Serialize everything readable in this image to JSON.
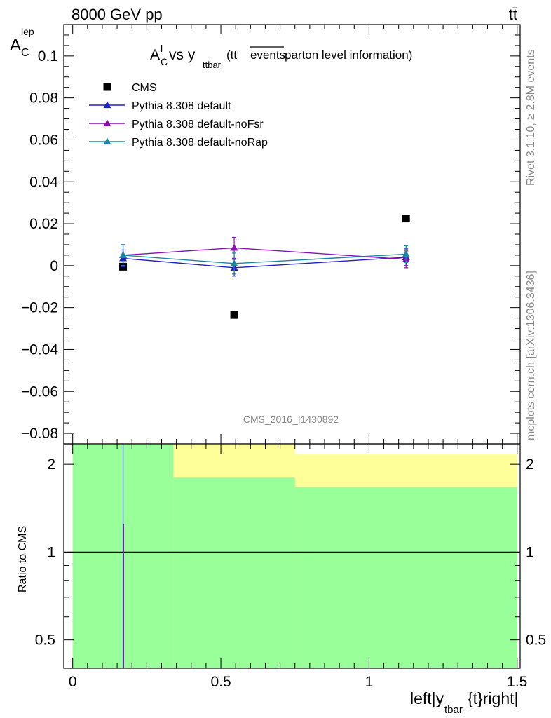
{
  "header": {
    "energy_label": "8000 GeV pp",
    "process_label": "tt̄"
  },
  "side_labels": {
    "rivet": "Rivet 3.1.10, ≥ 2.8M events",
    "mcplots": "mcplots.cern.ch [arXiv:1306.3436]"
  },
  "chart_data": [
    {
      "type": "scatter",
      "title_parts": {
        "a": "A",
        "a_sup": "l",
        "a_sub": "C",
        "vs": " vs y",
        "y_sub": "ttbar",
        "paren_open": " (tt",
        "overline": "events,",
        "rest": " parton level information)"
      },
      "ylabel_parts": {
        "main": "A",
        "sub": "C",
        "sup": "lep"
      },
      "xlim": [
        -0.03,
        1.51
      ],
      "ylim": [
        -0.085,
        0.115
      ],
      "yticks": [
        {
          "v": 0.1,
          "label": "0.1"
        },
        {
          "v": 0.08,
          "label": "0.08"
        },
        {
          "v": 0.06,
          "label": "0.06"
        },
        {
          "v": 0.04,
          "label": "0.04"
        },
        {
          "v": 0.02,
          "label": "0.02"
        },
        {
          "v": 0,
          "label": "0"
        },
        {
          "v": -0.02,
          "label": "−0.02"
        },
        {
          "v": -0.04,
          "label": "−0.04"
        },
        {
          "v": -0.06,
          "label": "−0.06"
        },
        {
          "v": -0.08,
          "label": "−0.08"
        }
      ],
      "watermark": "CMS_2016_I1430892",
      "legend_position": "top-left",
      "series": [
        {
          "name": "CMS",
          "marker": "square",
          "color": "#000000",
          "x": [
            0.17,
            0.545,
            1.125
          ],
          "y": [
            -0.0005,
            -0.0235,
            0.0225
          ],
          "err": [
            0.0,
            0.0,
            0.0
          ]
        },
        {
          "name": "Pythia 8.308 default",
          "marker": "triangle",
          "color": "#1f1fc8",
          "x": [
            0.17,
            0.545,
            1.125
          ],
          "y": [
            0.0035,
            -0.001,
            0.004
          ],
          "err": [
            0.004,
            0.004,
            0.004
          ]
        },
        {
          "name": "Pythia 8.308 default-noFsr",
          "marker": "triangle",
          "color": "#8a0fb4",
          "x": [
            0.17,
            0.545,
            1.125
          ],
          "y": [
            0.005,
            0.0085,
            0.003
          ],
          "err": [
            0.005,
            0.005,
            0.004
          ]
        },
        {
          "name": "Pythia 8.308 default-noRap",
          "marker": "triangle",
          "color": "#1a85a5",
          "x": [
            0.17,
            0.545,
            1.125
          ],
          "y": [
            0.005,
            0.001,
            0.0055
          ],
          "err": [
            0.005,
            0.005,
            0.004
          ]
        }
      ]
    },
    {
      "type": "area",
      "ylabel": "Ratio to CMS",
      "xlabel_parts": {
        "main": "left|y",
        "sub": "tbar",
        "rest": "{t}right|"
      },
      "log_y": true,
      "xlim": [
        -0.03,
        1.51
      ],
      "ylim": [
        0.4,
        2.35
      ],
      "xticks": [
        {
          "v": 0,
          "label": "0"
        },
        {
          "v": 0.5,
          "label": "0.5"
        },
        {
          "v": 1,
          "label": "1"
        },
        {
          "v": 1.5,
          "label": "1.5"
        }
      ],
      "yticks": [
        {
          "v": 0.5,
          "label": "0.5"
        },
        {
          "v": 1,
          "label": "1"
        },
        {
          "v": 2,
          "label": "2"
        }
      ],
      "reference_line": 1,
      "bands": [
        {
          "name": "yellow",
          "color": "#ffff99",
          "bins": [
            {
              "x0": 0.0,
              "x1": 0.34,
              "lo": 0.4,
              "hi": 2.35
            },
            {
              "x0": 0.34,
              "x1": 0.75,
              "lo": 1.8,
              "hi": 2.35
            },
            {
              "x0": 0.75,
              "x1": 1.5,
              "lo": 1.67,
              "hi": 2.16
            }
          ]
        },
        {
          "name": "green",
          "color": "#99ff99",
          "bins": [
            {
              "x0": 0.0,
              "x1": 0.34,
              "lo": 0.4,
              "hi": 2.35
            },
            {
              "x0": 0.34,
              "x1": 0.75,
              "lo": 0.4,
              "hi": 1.8
            },
            {
              "x0": 0.75,
              "x1": 1.5,
              "lo": 0.4,
              "hi": 1.67
            }
          ]
        }
      ],
      "ratio_lines": [
        {
          "x": 0.17,
          "lo": 0.4,
          "hi": 2.35,
          "color": "#1f1fc8"
        },
        {
          "x": 0.172,
          "lo": 0.4,
          "hi": 1.25,
          "color": "#8a0fb4"
        }
      ]
    }
  ]
}
